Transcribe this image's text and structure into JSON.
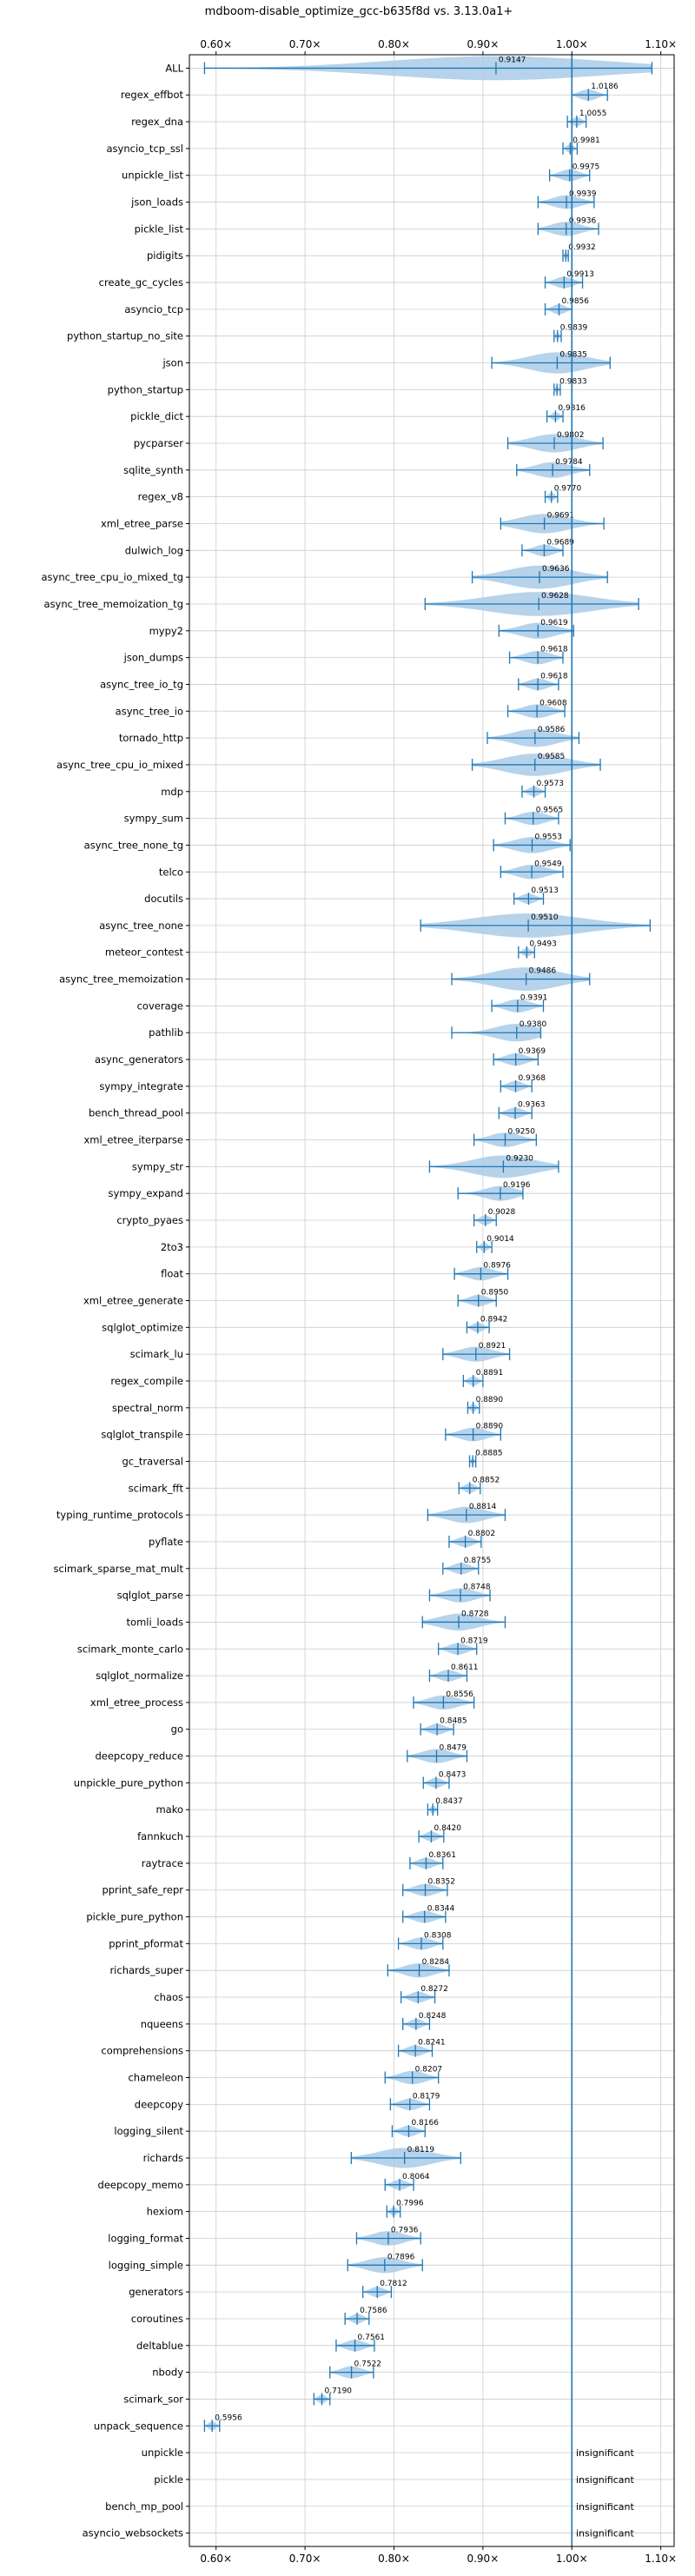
{
  "chart_data": {
    "type": "violin",
    "title": "mdboom-disable_optimize_gcc-b635f8d vs. 3.13.0a1+",
    "x_ticks": [
      0.6,
      0.7,
      0.8,
      0.9,
      1.0,
      1.1
    ],
    "x_tick_labels": [
      "0.60×",
      "0.70×",
      "0.80×",
      "0.90×",
      "1.00×",
      "1.10×"
    ],
    "xlim": [
      0.57,
      1.115
    ],
    "reference_line": 1.0,
    "colors": {
      "violin": "#a9cbe8",
      "whisker": "#1f77b4",
      "reference": "#1f77b4",
      "grid": "#cccccc",
      "axis": "#000000"
    },
    "benchmarks": [
      {
        "name": "ALL",
        "value": 0.9147,
        "min": 0.587,
        "max": 1.09,
        "label": "0.9147"
      },
      {
        "name": "regex_effbot",
        "value": 1.0186,
        "min": 1.0,
        "max": 1.04,
        "label": "1.0186"
      },
      {
        "name": "regex_dna",
        "value": 1.0055,
        "min": 0.995,
        "max": 1.016,
        "label": "1.0055"
      },
      {
        "name": "asyncio_tcp_ssl",
        "value": 0.9981,
        "min": 0.99,
        "max": 1.006,
        "label": "0.9981"
      },
      {
        "name": "unpickle_list",
        "value": 0.9975,
        "min": 0.975,
        "max": 1.02,
        "label": "0.9975"
      },
      {
        "name": "json_loads",
        "value": 0.9939,
        "min": 0.962,
        "max": 1.025,
        "label": "0.9939"
      },
      {
        "name": "pickle_list",
        "value": 0.9936,
        "min": 0.962,
        "max": 1.03,
        "label": "0.9936"
      },
      {
        "name": "pidigits",
        "value": 0.9932,
        "min": 0.99,
        "max": 0.996,
        "label": "0.9932"
      },
      {
        "name": "create_gc_cycles",
        "value": 0.9913,
        "min": 0.97,
        "max": 1.012,
        "label": "0.9913"
      },
      {
        "name": "asyncio_tcp",
        "value": 0.9856,
        "min": 0.97,
        "max": 1.0,
        "label": "0.9856"
      },
      {
        "name": "python_startup_no_site",
        "value": 0.9839,
        "min": 0.98,
        "max": 0.988,
        "label": "0.9839"
      },
      {
        "name": "json",
        "value": 0.9835,
        "min": 0.91,
        "max": 1.043,
        "label": "0.9835"
      },
      {
        "name": "python_startup",
        "value": 0.9833,
        "min": 0.98,
        "max": 0.987,
        "label": "0.9833"
      },
      {
        "name": "pickle_dict",
        "value": 0.9816,
        "min": 0.972,
        "max": 0.99,
        "label": "0.9816"
      },
      {
        "name": "pycparser",
        "value": 0.9802,
        "min": 0.928,
        "max": 1.035,
        "label": "0.9802"
      },
      {
        "name": "sqlite_synth",
        "value": 0.9784,
        "min": 0.938,
        "max": 1.02,
        "label": "0.9784"
      },
      {
        "name": "regex_v8",
        "value": 0.977,
        "min": 0.97,
        "max": 0.984,
        "label": "0.9770"
      },
      {
        "name": "xml_etree_parse",
        "value": 0.9691,
        "min": 0.92,
        "max": 1.036,
        "label": "0.9691"
      },
      {
        "name": "dulwich_log",
        "value": 0.9689,
        "min": 0.944,
        "max": 0.99,
        "label": "0.9689"
      },
      {
        "name": "async_tree_cpu_io_mixed_tg",
        "value": 0.9636,
        "min": 0.888,
        "max": 1.04,
        "label": "0.9636"
      },
      {
        "name": "async_tree_memoization_tg",
        "value": 0.9628,
        "min": 0.835,
        "max": 1.075,
        "label": "0.9628"
      },
      {
        "name": "mypy2",
        "value": 0.9619,
        "min": 0.918,
        "max": 1.002,
        "label": "0.9619"
      },
      {
        "name": "json_dumps",
        "value": 0.9618,
        "min": 0.93,
        "max": 0.99,
        "label": "0.9618"
      },
      {
        "name": "async_tree_io_tg",
        "value": 0.9618,
        "min": 0.94,
        "max": 0.985,
        "label": "0.9618"
      },
      {
        "name": "async_tree_io",
        "value": 0.9608,
        "min": 0.928,
        "max": 0.992,
        "label": "0.9608"
      },
      {
        "name": "tornado_http",
        "value": 0.9586,
        "min": 0.905,
        "max": 1.008,
        "label": "0.9586"
      },
      {
        "name": "async_tree_cpu_io_mixed",
        "value": 0.9585,
        "min": 0.888,
        "max": 1.032,
        "label": "0.9585"
      },
      {
        "name": "mdp",
        "value": 0.9573,
        "min": 0.944,
        "max": 0.97,
        "label": "0.9573"
      },
      {
        "name": "sympy_sum",
        "value": 0.9565,
        "min": 0.925,
        "max": 0.985,
        "label": "0.9565"
      },
      {
        "name": "async_tree_none_tg",
        "value": 0.9553,
        "min": 0.912,
        "max": 0.998,
        "label": "0.9553"
      },
      {
        "name": "telco",
        "value": 0.9549,
        "min": 0.92,
        "max": 0.99,
        "label": "0.9549"
      },
      {
        "name": "docutils",
        "value": 0.9513,
        "min": 0.935,
        "max": 0.968,
        "label": "0.9513"
      },
      {
        "name": "async_tree_none",
        "value": 0.951,
        "min": 0.83,
        "max": 1.088,
        "label": "0.9510"
      },
      {
        "name": "meteor_contest",
        "value": 0.9493,
        "min": 0.94,
        "max": 0.958,
        "label": "0.9493"
      },
      {
        "name": "async_tree_memoization",
        "value": 0.9486,
        "min": 0.865,
        "max": 1.02,
        "label": "0.9486"
      },
      {
        "name": "coverage",
        "value": 0.9391,
        "min": 0.91,
        "max": 0.968,
        "label": "0.9391"
      },
      {
        "name": "pathlib",
        "value": 0.938,
        "min": 0.865,
        "max": 0.965,
        "label": "0.9380"
      },
      {
        "name": "async_generators",
        "value": 0.9369,
        "min": 0.912,
        "max": 0.962,
        "label": "0.9369"
      },
      {
        "name": "sympy_integrate",
        "value": 0.9368,
        "min": 0.92,
        "max": 0.955,
        "label": "0.9368"
      },
      {
        "name": "bench_thread_pool",
        "value": 0.9363,
        "min": 0.918,
        "max": 0.955,
        "label": "0.9363"
      },
      {
        "name": "xml_etree_iterparse",
        "value": 0.925,
        "min": 0.89,
        "max": 0.96,
        "label": "0.9250"
      },
      {
        "name": "sympy_str",
        "value": 0.923,
        "min": 0.84,
        "max": 0.985,
        "label": "0.9230"
      },
      {
        "name": "sympy_expand",
        "value": 0.9196,
        "min": 0.872,
        "max": 0.945,
        "label": "0.9196"
      },
      {
        "name": "crypto_pyaes",
        "value": 0.9028,
        "min": 0.89,
        "max": 0.915,
        "label": "0.9028"
      },
      {
        "name": "2to3",
        "value": 0.9014,
        "min": 0.893,
        "max": 0.91,
        "label": "0.9014"
      },
      {
        "name": "float",
        "value": 0.8976,
        "min": 0.868,
        "max": 0.928,
        "label": "0.8976"
      },
      {
        "name": "xml_etree_generate",
        "value": 0.895,
        "min": 0.872,
        "max": 0.915,
        "label": "0.8950"
      },
      {
        "name": "sqlglot_optimize",
        "value": 0.8942,
        "min": 0.882,
        "max": 0.907,
        "label": "0.8942"
      },
      {
        "name": "scimark_lu",
        "value": 0.8921,
        "min": 0.855,
        "max": 0.93,
        "label": "0.8921"
      },
      {
        "name": "regex_compile",
        "value": 0.8891,
        "min": 0.878,
        "max": 0.9,
        "label": "0.8891"
      },
      {
        "name": "spectral_norm",
        "value": 0.889,
        "min": 0.883,
        "max": 0.896,
        "label": "0.8890"
      },
      {
        "name": "sqlglot_transpile",
        "value": 0.889,
        "min": 0.858,
        "max": 0.92,
        "label": "0.8890"
      },
      {
        "name": "gc_traversal",
        "value": 0.8885,
        "min": 0.885,
        "max": 0.892,
        "label": "0.8885"
      },
      {
        "name": "scimark_fft",
        "value": 0.8852,
        "min": 0.873,
        "max": 0.897,
        "label": "0.8852"
      },
      {
        "name": "typing_runtime_protocols",
        "value": 0.8814,
        "min": 0.838,
        "max": 0.925,
        "label": "0.8814"
      },
      {
        "name": "pyflate",
        "value": 0.8802,
        "min": 0.862,
        "max": 0.898,
        "label": "0.8802"
      },
      {
        "name": "scimark_sparse_mat_mult",
        "value": 0.8755,
        "min": 0.855,
        "max": 0.895,
        "label": "0.8755"
      },
      {
        "name": "sqlglot_parse",
        "value": 0.8748,
        "min": 0.84,
        "max": 0.908,
        "label": "0.8748"
      },
      {
        "name": "tomli_loads",
        "value": 0.8728,
        "min": 0.832,
        "max": 0.925,
        "label": "0.8728"
      },
      {
        "name": "scimark_monte_carlo",
        "value": 0.8719,
        "min": 0.85,
        "max": 0.893,
        "label": "0.8719"
      },
      {
        "name": "sqlglot_normalize",
        "value": 0.8611,
        "min": 0.84,
        "max": 0.882,
        "label": "0.8611"
      },
      {
        "name": "xml_etree_process",
        "value": 0.8556,
        "min": 0.822,
        "max": 0.89,
        "label": "0.8556"
      },
      {
        "name": "go",
        "value": 0.8485,
        "min": 0.83,
        "max": 0.867,
        "label": "0.8485"
      },
      {
        "name": "deepcopy_reduce",
        "value": 0.8479,
        "min": 0.815,
        "max": 0.882,
        "label": "0.8479"
      },
      {
        "name": "unpickle_pure_python",
        "value": 0.8473,
        "min": 0.833,
        "max": 0.862,
        "label": "0.8473"
      },
      {
        "name": "mako",
        "value": 0.8437,
        "min": 0.838,
        "max": 0.849,
        "label": "0.8437"
      },
      {
        "name": "fannkuch",
        "value": 0.842,
        "min": 0.828,
        "max": 0.856,
        "label": "0.8420"
      },
      {
        "name": "raytrace",
        "value": 0.8361,
        "min": 0.818,
        "max": 0.855,
        "label": "0.8361"
      },
      {
        "name": "pprint_safe_repr",
        "value": 0.8352,
        "min": 0.81,
        "max": 0.86,
        "label": "0.8352"
      },
      {
        "name": "pickle_pure_python",
        "value": 0.8344,
        "min": 0.81,
        "max": 0.858,
        "label": "0.8344"
      },
      {
        "name": "pprint_pformat",
        "value": 0.8308,
        "min": 0.805,
        "max": 0.855,
        "label": "0.8308"
      },
      {
        "name": "richards_super",
        "value": 0.8284,
        "min": 0.793,
        "max": 0.862,
        "label": "0.8284"
      },
      {
        "name": "chaos",
        "value": 0.8272,
        "min": 0.808,
        "max": 0.846,
        "label": "0.8272"
      },
      {
        "name": "nqueens",
        "value": 0.8248,
        "min": 0.81,
        "max": 0.84,
        "label": "0.8248"
      },
      {
        "name": "comprehensions",
        "value": 0.8241,
        "min": 0.805,
        "max": 0.843,
        "label": "0.8241"
      },
      {
        "name": "chameleon",
        "value": 0.8207,
        "min": 0.79,
        "max": 0.85,
        "label": "0.8207"
      },
      {
        "name": "deepcopy",
        "value": 0.8179,
        "min": 0.796,
        "max": 0.84,
        "label": "0.8179"
      },
      {
        "name": "logging_silent",
        "value": 0.8166,
        "min": 0.798,
        "max": 0.835,
        "label": "0.8166"
      },
      {
        "name": "richards",
        "value": 0.8119,
        "min": 0.752,
        "max": 0.875,
        "label": "0.8119"
      },
      {
        "name": "deepcopy_memo",
        "value": 0.8064,
        "min": 0.79,
        "max": 0.822,
        "label": "0.8064"
      },
      {
        "name": "hexiom",
        "value": 0.7996,
        "min": 0.792,
        "max": 0.807,
        "label": "0.7996"
      },
      {
        "name": "logging_format",
        "value": 0.7936,
        "min": 0.758,
        "max": 0.83,
        "label": "0.7936"
      },
      {
        "name": "logging_simple",
        "value": 0.7896,
        "min": 0.748,
        "max": 0.832,
        "label": "0.7896"
      },
      {
        "name": "generators",
        "value": 0.7812,
        "min": 0.765,
        "max": 0.797,
        "label": "0.7812"
      },
      {
        "name": "coroutines",
        "value": 0.7586,
        "min": 0.745,
        "max": 0.772,
        "label": "0.7586"
      },
      {
        "name": "deltablue",
        "value": 0.7561,
        "min": 0.735,
        "max": 0.778,
        "label": "0.7561"
      },
      {
        "name": "nbody",
        "value": 0.7522,
        "min": 0.728,
        "max": 0.777,
        "label": "0.7522"
      },
      {
        "name": "scimark_sor",
        "value": 0.719,
        "min": 0.71,
        "max": 0.728,
        "label": "0.7190"
      },
      {
        "name": "unpack_sequence",
        "value": 0.5956,
        "min": 0.587,
        "max": 0.604,
        "label": "0.5956"
      },
      {
        "name": "unpickle",
        "value": null,
        "label": "insignificant"
      },
      {
        "name": "pickle",
        "value": null,
        "label": "insignificant"
      },
      {
        "name": "bench_mp_pool",
        "value": null,
        "label": "insignificant"
      },
      {
        "name": "asyncio_websockets",
        "value": null,
        "label": "insignificant"
      }
    ]
  }
}
